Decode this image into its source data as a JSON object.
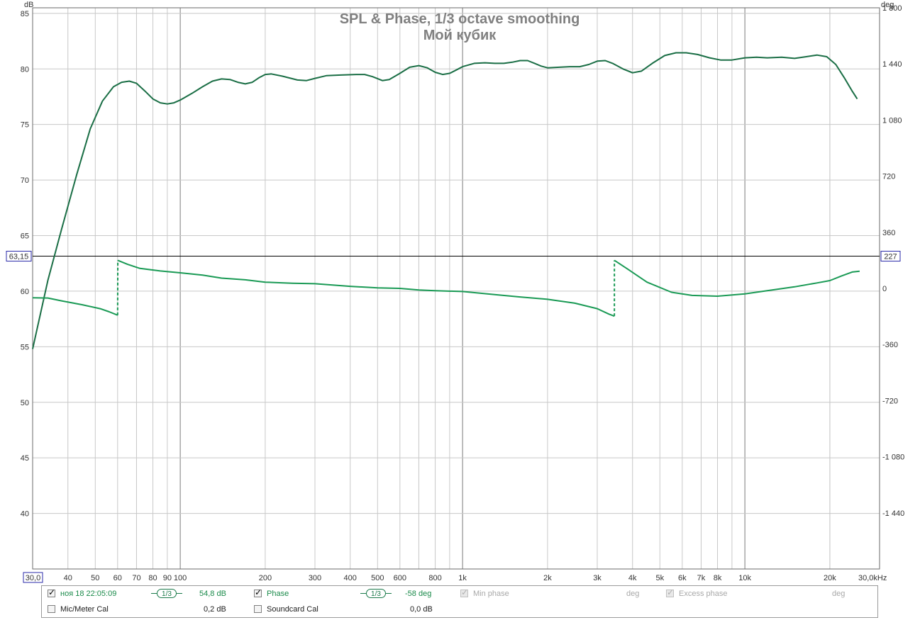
{
  "chart_data": {
    "type": "line",
    "title": "SPL & Phase, 1/3 octave smoothing",
    "subtitle": "Мой кубик",
    "left_axis": {
      "unit": "dB",
      "range": [
        35,
        85.5
      ],
      "ticks": [
        40,
        45,
        50,
        55,
        60,
        65,
        70,
        75,
        80,
        85
      ]
    },
    "right_axis": {
      "unit": "deg",
      "range": [
        -1800,
        1800
      ],
      "ticks": [
        {
          "v": 1800,
          "label": "1 800"
        },
        {
          "v": 1440,
          "label": "1 440"
        },
        {
          "v": 1080,
          "label": "1 080"
        },
        {
          "v": 720,
          "label": "720"
        },
        {
          "v": 360,
          "label": "360"
        },
        {
          "v": 0,
          "label": "0"
        },
        {
          "v": -360,
          "label": "-360"
        },
        {
          "v": -720,
          "label": "-720"
        },
        {
          "v": -1080,
          "label": "-1 080"
        },
        {
          "v": -1440,
          "label": "-1 440"
        }
      ]
    },
    "x_axis": {
      "unit": "Hz",
      "scale": "log",
      "range": [
        30,
        30000
      ],
      "tick_labels": [
        {
          "v": 30,
          "label": "30,0"
        },
        {
          "v": 40,
          "label": "40"
        },
        {
          "v": 50,
          "label": "50"
        },
        {
          "v": 60,
          "label": "60"
        },
        {
          "v": 70,
          "label": "70"
        },
        {
          "v": 80,
          "label": "80"
        },
        {
          "v": 90,
          "label": "90"
        },
        {
          "v": 100,
          "label": "100"
        },
        {
          "v": 200,
          "label": "200"
        },
        {
          "v": 300,
          "label": "300"
        },
        {
          "v": 400,
          "label": "400"
        },
        {
          "v": 500,
          "label": "500"
        },
        {
          "v": 600,
          "label": "600"
        },
        {
          "v": 800,
          "label": "800"
        },
        {
          "v": 1000,
          "label": "1k"
        },
        {
          "v": 2000,
          "label": "2k"
        },
        {
          "v": 3000,
          "label": "3k"
        },
        {
          "v": 4000,
          "label": "4k"
        },
        {
          "v": 5000,
          "label": "5k"
        },
        {
          "v": 6000,
          "label": "6k"
        },
        {
          "v": 7000,
          "label": "7k"
        },
        {
          "v": 8000,
          "label": "8k"
        },
        {
          "v": 10000,
          "label": "10k"
        },
        {
          "v": 20000,
          "label": "20k"
        },
        {
          "v": 30000,
          "label": "30,0kHz"
        }
      ]
    },
    "cursor": {
      "db": 63.15,
      "db_label": "63,15",
      "deg_label": "227"
    },
    "grid": true,
    "series": [
      {
        "name": "SPL",
        "axis": "left",
        "color": "#1a6e45",
        "points": [
          [
            30,
            54.8
          ],
          [
            34,
            61.0
          ],
          [
            38,
            65.6
          ],
          [
            43,
            70.5
          ],
          [
            48,
            74.6
          ],
          [
            53,
            77.1
          ],
          [
            58,
            78.4
          ],
          [
            62,
            78.8
          ],
          [
            66,
            78.9
          ],
          [
            70,
            78.7
          ],
          [
            75,
            78.0
          ],
          [
            80,
            77.3
          ],
          [
            85,
            76.95
          ],
          [
            90,
            76.85
          ],
          [
            95,
            76.95
          ],
          [
            100,
            77.2
          ],
          [
            110,
            77.8
          ],
          [
            120,
            78.4
          ],
          [
            130,
            78.9
          ],
          [
            140,
            79.1
          ],
          [
            150,
            79.05
          ],
          [
            160,
            78.8
          ],
          [
            170,
            78.65
          ],
          [
            180,
            78.8
          ],
          [
            190,
            79.2
          ],
          [
            200,
            79.5
          ],
          [
            210,
            79.55
          ],
          [
            230,
            79.35
          ],
          [
            260,
            79.0
          ],
          [
            280,
            78.95
          ],
          [
            300,
            79.15
          ],
          [
            330,
            79.4
          ],
          [
            370,
            79.45
          ],
          [
            420,
            79.5
          ],
          [
            450,
            79.5
          ],
          [
            480,
            79.3
          ],
          [
            520,
            78.95
          ],
          [
            550,
            79.05
          ],
          [
            600,
            79.6
          ],
          [
            650,
            80.15
          ],
          [
            700,
            80.3
          ],
          [
            750,
            80.1
          ],
          [
            800,
            79.7
          ],
          [
            850,
            79.5
          ],
          [
            900,
            79.6
          ],
          [
            950,
            79.9
          ],
          [
            1000,
            80.2
          ],
          [
            1100,
            80.5
          ],
          [
            1200,
            80.55
          ],
          [
            1300,
            80.5
          ],
          [
            1400,
            80.5
          ],
          [
            1500,
            80.6
          ],
          [
            1600,
            80.75
          ],
          [
            1700,
            80.75
          ],
          [
            1800,
            80.5
          ],
          [
            1900,
            80.25
          ],
          [
            2000,
            80.1
          ],
          [
            2200,
            80.15
          ],
          [
            2400,
            80.2
          ],
          [
            2600,
            80.2
          ],
          [
            2800,
            80.4
          ],
          [
            3000,
            80.7
          ],
          [
            3200,
            80.75
          ],
          [
            3400,
            80.5
          ],
          [
            3700,
            80.0
          ],
          [
            4000,
            79.65
          ],
          [
            4300,
            79.8
          ],
          [
            4700,
            80.5
          ],
          [
            5200,
            81.2
          ],
          [
            5700,
            81.45
          ],
          [
            6200,
            81.45
          ],
          [
            6800,
            81.3
          ],
          [
            7500,
            81.0
          ],
          [
            8200,
            80.8
          ],
          [
            9000,
            80.8
          ],
          [
            10000,
            81.0
          ],
          [
            11000,
            81.05
          ],
          [
            12000,
            81.0
          ],
          [
            13500,
            81.05
          ],
          [
            15000,
            80.95
          ],
          [
            16500,
            81.1
          ],
          [
            18000,
            81.25
          ],
          [
            19500,
            81.1
          ],
          [
            21000,
            80.4
          ],
          [
            22500,
            79.2
          ],
          [
            24000,
            78.0
          ],
          [
            25000,
            77.3
          ]
        ]
      },
      {
        "name": "Phase",
        "axis": "right",
        "color": "#1a9a55",
        "points": [
          [
            30,
            -60
          ],
          [
            34,
            -62
          ],
          [
            38,
            -80
          ],
          [
            45,
            -105
          ],
          [
            52,
            -130
          ],
          [
            56,
            -150
          ],
          [
            60,
            -172
          ],
          [
            60.1,
            180
          ],
          [
            65,
            155
          ],
          [
            72,
            128
          ],
          [
            85,
            112
          ],
          [
            100,
            100
          ],
          [
            120,
            85
          ],
          [
            140,
            66
          ],
          [
            170,
            55
          ],
          [
            200,
            40
          ],
          [
            250,
            33
          ],
          [
            300,
            30
          ],
          [
            400,
            13
          ],
          [
            500,
            3
          ],
          [
            600,
            0
          ],
          [
            700,
            -10
          ],
          [
            800,
            -15
          ],
          [
            1000,
            -20
          ],
          [
            1300,
            -40
          ],
          [
            1600,
            -55
          ],
          [
            2000,
            -70
          ],
          [
            2500,
            -95
          ],
          [
            3000,
            -130
          ],
          [
            3300,
            -165
          ],
          [
            3450,
            -178
          ],
          [
            3450.5,
            180
          ],
          [
            3800,
            130
          ],
          [
            4500,
            40
          ],
          [
            5500,
            -25
          ],
          [
            6500,
            -45
          ],
          [
            8000,
            -50
          ],
          [
            10000,
            -35
          ],
          [
            12000,
            -15
          ],
          [
            15000,
            10
          ],
          [
            18000,
            35
          ],
          [
            20000,
            50
          ],
          [
            22000,
            80
          ],
          [
            24000,
            105
          ],
          [
            25500,
            110
          ]
        ]
      }
    ]
  },
  "legend": {
    "row1": {
      "spl_checked": true,
      "spl_label": "ноя 18 22:05:09",
      "spl_smoothing": "1/3",
      "spl_value": "54,8 dB",
      "phase_checked": true,
      "phase_label": "Phase",
      "phase_smoothing": "1/3",
      "phase_value": "-58 deg",
      "min_phase_label": "Min phase",
      "min_phase_unit": "deg",
      "excess_phase_label": "Excess phase",
      "excess_phase_unit": "deg"
    },
    "row2": {
      "mic_cal_label": "Mic/Meter Cal",
      "mic_cal_value": "0,2 dB",
      "soundcard_cal_label": "Soundcard Cal",
      "soundcard_cal_value": "0,0 dB"
    }
  }
}
